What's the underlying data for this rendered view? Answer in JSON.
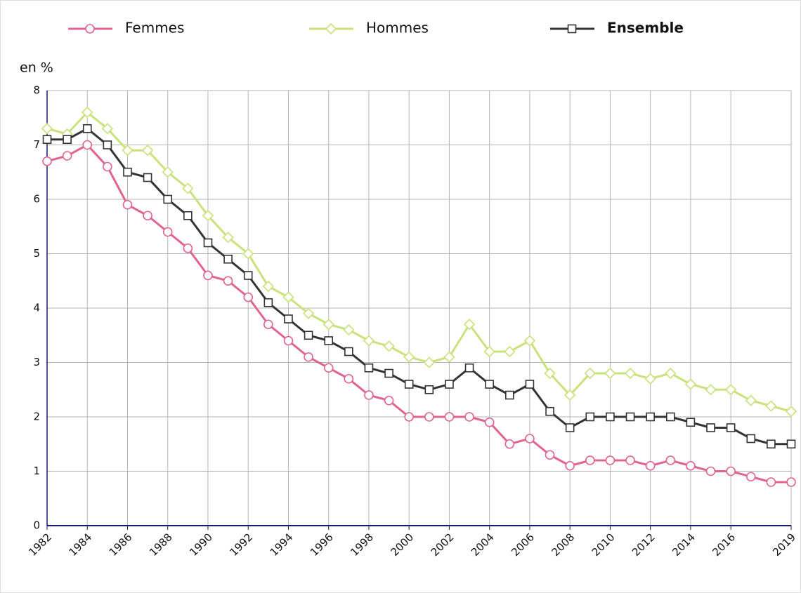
{
  "chart_data": {
    "type": "line",
    "y_label": "en %",
    "x": [
      1982,
      1983,
      1984,
      1985,
      1986,
      1987,
      1988,
      1989,
      1990,
      1991,
      1992,
      1993,
      1994,
      1995,
      1996,
      1997,
      1998,
      1999,
      2000,
      2001,
      2002,
      2003,
      2004,
      2005,
      2006,
      2007,
      2008,
      2009,
      2010,
      2011,
      2012,
      2013,
      2014,
      2015,
      2016,
      2017,
      2018,
      2019
    ],
    "series": [
      {
        "name": "Femmes",
        "color": "#e0648c",
        "marker": "circle",
        "values": [
          6.7,
          6.8,
          7.0,
          6.6,
          5.9,
          5.7,
          5.4,
          5.1,
          4.6,
          4.5,
          4.2,
          3.7,
          3.4,
          3.1,
          2.9,
          2.7,
          2.4,
          2.3,
          2.0,
          2.0,
          2.0,
          2.0,
          1.9,
          1.5,
          1.6,
          1.3,
          1.1,
          1.2,
          1.2,
          1.2,
          1.1,
          1.2,
          1.1,
          1.0,
          1.0,
          0.9,
          0.8,
          0.8
        ]
      },
      {
        "name": "Hommes",
        "color": "#c9e27c",
        "marker": "diamond",
        "values": [
          7.3,
          7.2,
          7.6,
          7.3,
          6.9,
          6.9,
          6.5,
          6.2,
          5.7,
          5.3,
          5.0,
          4.4,
          4.2,
          3.9,
          3.7,
          3.6,
          3.4,
          3.3,
          3.1,
          3.0,
          3.1,
          3.7,
          3.2,
          3.2,
          3.4,
          2.8,
          2.4,
          2.8,
          2.8,
          2.8,
          2.7,
          2.8,
          2.6,
          2.5,
          2.5,
          2.3,
          2.2,
          2.1
        ]
      },
      {
        "name": "Ensemble",
        "color": "#333333",
        "marker": "square",
        "values": [
          7.1,
          7.1,
          7.3,
          7.0,
          6.5,
          6.4,
          6.0,
          5.7,
          5.2,
          4.9,
          4.6,
          4.1,
          3.8,
          3.5,
          3.4,
          3.2,
          2.9,
          2.8,
          2.6,
          2.5,
          2.6,
          2.9,
          2.6,
          2.4,
          2.6,
          2.1,
          1.8,
          2.0,
          2.0,
          2.0,
          2.0,
          2.0,
          1.9,
          1.8,
          1.8,
          1.6,
          1.5,
          1.5
        ]
      }
    ],
    "xlim": [
      1982,
      2019
    ],
    "xticks": [
      1982,
      1984,
      1986,
      1988,
      1990,
      1992,
      1994,
      1996,
      1998,
      2000,
      2002,
      2004,
      2006,
      2008,
      2010,
      2012,
      2014,
      2016,
      2019
    ],
    "ylim": [
      0,
      8
    ],
    "yticks": [
      0,
      1,
      2,
      3,
      4,
      5,
      6,
      7,
      8
    ],
    "grid": true
  }
}
